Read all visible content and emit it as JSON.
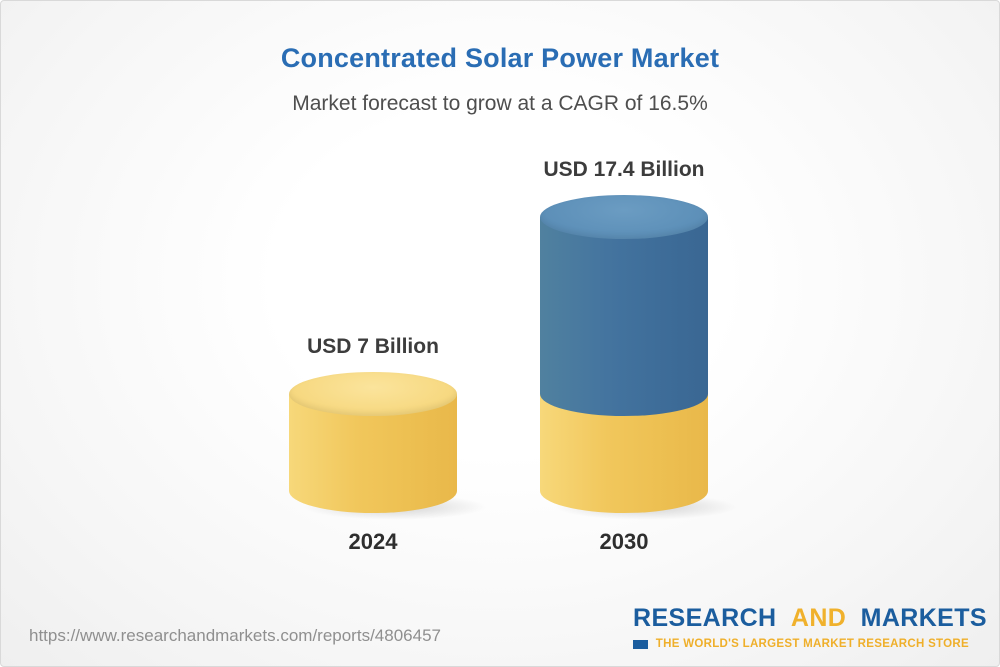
{
  "header": {
    "title": "Concentrated Solar Power Market",
    "subtitle": "Market forecast to grow at a CAGR of 16.5%"
  },
  "chart_data": {
    "type": "bar",
    "variant": "3d-cylinder",
    "title": "Concentrated Solar Power Market",
    "subtitle": "Market forecast to grow at a CAGR of 16.5%",
    "cagr": "16.5%",
    "unit": "USD Billion",
    "categories": [
      "2024",
      "2030"
    ],
    "values": [
      7,
      17.4
    ],
    "xlabel": "",
    "ylabel": "",
    "axis": "none",
    "grid": false,
    "legend_position": "none",
    "colors": {
      "gold": "#f0c75e",
      "blue": "#44749f"
    },
    "bars": [
      {
        "category": "2024",
        "value": 7,
        "value_label": "USD 7 Billion",
        "segments": [
          {
            "value": 7,
            "color_key": "gold"
          }
        ]
      },
      {
        "category": "2030",
        "value": 17.4,
        "value_label": "USD 17.4 Billion",
        "segments": [
          {
            "value": 7,
            "color_key": "gold"
          },
          {
            "value": 10.4,
            "color_key": "blue"
          }
        ]
      }
    ]
  },
  "footer": {
    "url": "https://www.researchandmarkets.com/reports/4806457",
    "logo": {
      "research": "RESEARCH",
      "and": "AND",
      "markets": "MARKETS",
      "tagline": "THE WORLD'S LARGEST MARKET RESEARCH STORE"
    }
  }
}
